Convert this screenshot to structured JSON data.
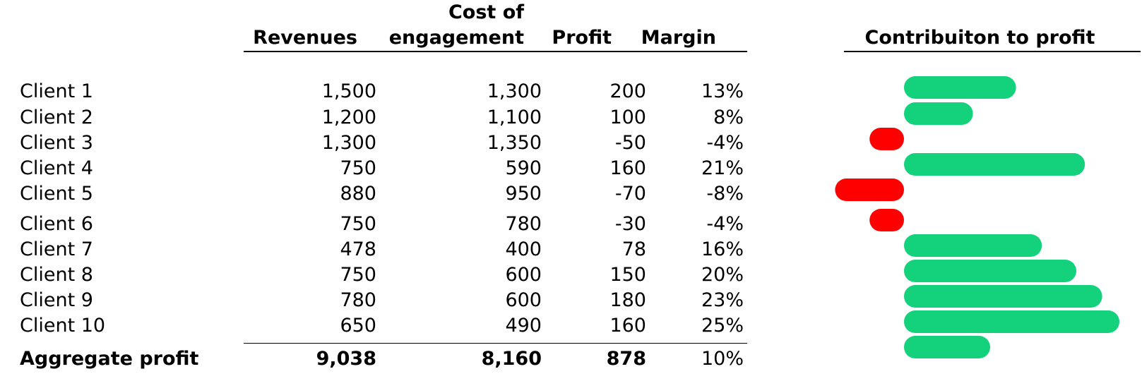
{
  "columns": {
    "revenues": "Revenues",
    "cost_line1": "Cost of",
    "cost_line2": "engagement",
    "profit": "Profit",
    "margin": "Margin"
  },
  "chart_title": "Contribuiton to profit",
  "rows": [
    {
      "client": "Client 1",
      "revenues": "1,500",
      "cost": "1,300",
      "profit": "200",
      "margin": "13%"
    },
    {
      "client": "Client 2",
      "revenues": "1,200",
      "cost": "1,100",
      "profit": "100",
      "margin": "8%"
    },
    {
      "client": "Client 3",
      "revenues": "1,300",
      "cost": "1,350",
      "profit": "-50",
      "margin": "-4%"
    },
    {
      "client": "Client 4",
      "revenues": "750",
      "cost": "590",
      "profit": "160",
      "margin": "21%"
    },
    {
      "client": "Client 5",
      "revenues": "880",
      "cost": "950",
      "profit": "-70",
      "margin": "-8%"
    },
    {
      "client": "Client 6",
      "revenues": "750",
      "cost": "780",
      "profit": "-30",
      "margin": "-4%"
    },
    {
      "client": "Client 7",
      "revenues": "478",
      "cost": "400",
      "profit": "78",
      "margin": "16%"
    },
    {
      "client": "Client 8",
      "revenues": "750",
      "cost": "600",
      "profit": "150",
      "margin": "20%"
    },
    {
      "client": "Client 9",
      "revenues": "780",
      "cost": "600",
      "profit": "180",
      "margin": "23%"
    },
    {
      "client": "Client 10",
      "revenues": "650",
      "cost": "490",
      "profit": "160",
      "margin": "25%"
    }
  ],
  "total": {
    "client": "Aggregate profit",
    "revenues": "9,038",
    "cost": "8,160",
    "profit": "878",
    "margin": "10%"
  },
  "colors": {
    "positive": "#14d27c",
    "negative": "#ff0000"
  },
  "chart_data": {
    "type": "bar",
    "orientation": "horizontal",
    "title": "Contribuiton to profit",
    "categories": [
      "Client 1",
      "Client 2",
      "Client 3",
      "Client 4",
      "Client 5",
      "Client 6",
      "Client 7",
      "Client 8",
      "Client 9",
      "Client 10",
      "Aggregate profit"
    ],
    "values": [
      13,
      8,
      -4,
      21,
      -8,
      -4,
      16,
      20,
      23,
      25,
      10
    ],
    "unit": "%",
    "xlim": [
      -8,
      25
    ],
    "grid": false
  }
}
